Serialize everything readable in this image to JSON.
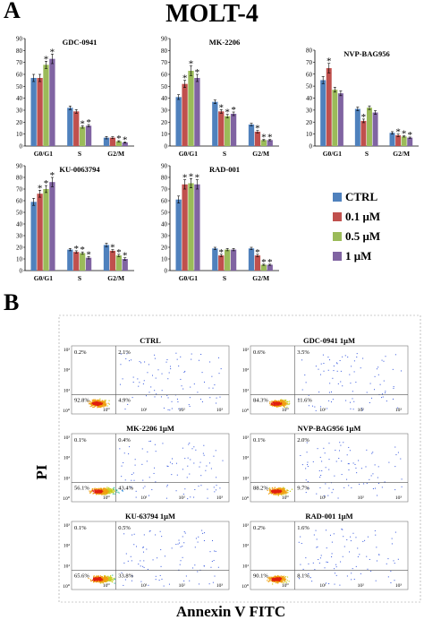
{
  "figure": {
    "panel_a_letter": "A",
    "panel_b_letter": "B",
    "title": "MOLT-4",
    "flow_y_label": "PI",
    "flow_x_label": "Annexin V FITC"
  },
  "legend": {
    "entries": [
      {
        "label": "CTRL",
        "color": "#4F81BD"
      },
      {
        "label": "0.1 μM",
        "color": "#C0504D"
      },
      {
        "label": "0.5 μM",
        "color": "#9BBB59"
      },
      {
        "label": "1 μM",
        "color": "#8064A2"
      }
    ]
  },
  "chart_data": [
    {
      "type": "bar",
      "title": "GDC-0941",
      "categories": [
        "G0/G1",
        "S",
        "G2/M"
      ],
      "ylim": [
        0,
        90
      ],
      "yticks": [
        "0",
        "10",
        "20",
        "30",
        "40",
        "50",
        "60",
        "70",
        "80",
        "90"
      ],
      "series": [
        {
          "name": "CTRL",
          "values": [
            57,
            32,
            7
          ],
          "errors": [
            3,
            1.5,
            1
          ]
        },
        {
          "name": "0.1 μM",
          "values": [
            57,
            29,
            7
          ],
          "errors": [
            3,
            1.5,
            0.8
          ]
        },
        {
          "name": "0.5 μM",
          "values": [
            68,
            16,
            4
          ],
          "errors": [
            3,
            1,
            0.5
          ]
        },
        {
          "name": "1 μM",
          "values": [
            73,
            17,
            3
          ],
          "errors": [
            4,
            1,
            0.5
          ]
        }
      ],
      "stars": [
        [
          false,
          false,
          true,
          true
        ],
        [
          false,
          false,
          true,
          true
        ],
        [
          false,
          false,
          true,
          true
        ]
      ]
    },
    {
      "type": "bar",
      "title": "MK-2206",
      "categories": [
        "G0/G1",
        "S",
        "G2/M"
      ],
      "ylim": [
        0,
        90
      ],
      "yticks": [
        "0",
        "10",
        "20",
        "30",
        "40",
        "50",
        "60",
        "70",
        "80",
        "90"
      ],
      "series": [
        {
          "name": "CTRL",
          "values": [
            41,
            37,
            18
          ],
          "errors": [
            2,
            1.5,
            1
          ]
        },
        {
          "name": "0.1 μM",
          "values": [
            52,
            29,
            12
          ],
          "errors": [
            3,
            1.5,
            1
          ]
        },
        {
          "name": "0.5 μM",
          "values": [
            63,
            25,
            5
          ],
          "errors": [
            4,
            1.5,
            0.5
          ]
        },
        {
          "name": "1 μM",
          "values": [
            57,
            27,
            5
          ],
          "errors": [
            3,
            1.5,
            0.5
          ]
        }
      ],
      "stars": [
        [
          false,
          true,
          true,
          true
        ],
        [
          false,
          true,
          true,
          true
        ],
        [
          false,
          true,
          true,
          true
        ]
      ]
    },
    {
      "type": "bar",
      "title": "NVP-BAG956",
      "categories": [
        "G0/G1",
        "S",
        "G2/M"
      ],
      "ylim": [
        0,
        80
      ],
      "yticks": [
        "0",
        "10",
        "20",
        "30",
        "40",
        "50",
        "60",
        "70",
        "80"
      ],
      "series": [
        {
          "name": "CTRL",
          "values": [
            55,
            31,
            11
          ],
          "errors": [
            3,
            1.5,
            1
          ]
        },
        {
          "name": "0.1 μM",
          "values": [
            65,
            21,
            9
          ],
          "errors": [
            4,
            1.5,
            1
          ]
        },
        {
          "name": "0.5 μM",
          "values": [
            47,
            32,
            8
          ],
          "errors": [
            2,
            1.5,
            0.5
          ]
        },
        {
          "name": "1 μM",
          "values": [
            44,
            28,
            7
          ],
          "errors": [
            2,
            1.5,
            0.5
          ]
        }
      ],
      "stars": [
        [
          false,
          true,
          false,
          false
        ],
        [
          false,
          true,
          false,
          false
        ],
        [
          false,
          true,
          true,
          true
        ]
      ]
    },
    {
      "type": "bar",
      "title": "KU-0063794",
      "categories": [
        "G0/G1",
        "S",
        "G2/M"
      ],
      "ylim": [
        0,
        90
      ],
      "yticks": [
        "0",
        "10",
        "20",
        "30",
        "40",
        "50",
        "60",
        "70",
        "80",
        "90"
      ],
      "series": [
        {
          "name": "CTRL",
          "values": [
            59,
            18,
            22
          ],
          "errors": [
            3,
            1,
            1.5
          ]
        },
        {
          "name": "0.1 μM",
          "values": [
            66,
            16,
            17
          ],
          "errors": [
            3,
            1,
            1
          ]
        },
        {
          "name": "0.5 μM",
          "values": [
            70,
            15,
            13
          ],
          "errors": [
            3,
            1,
            1
          ]
        },
        {
          "name": "1 μM",
          "values": [
            76,
            11,
            10
          ],
          "errors": [
            4,
            1,
            1
          ]
        }
      ],
      "stars": [
        [
          false,
          true,
          true,
          true
        ],
        [
          false,
          true,
          true,
          true
        ],
        [
          false,
          true,
          true,
          true
        ]
      ]
    },
    {
      "type": "bar",
      "title": "RAD-001",
      "categories": [
        "G0/G1",
        "S",
        "G2/M"
      ],
      "ylim": [
        0,
        90
      ],
      "yticks": [
        "0",
        "10",
        "20",
        "30",
        "40",
        "50",
        "60",
        "70",
        "80",
        "90"
      ],
      "series": [
        {
          "name": "CTRL",
          "values": [
            61,
            19,
            19
          ],
          "errors": [
            3,
            1,
            1
          ]
        },
        {
          "name": "0.1 μM",
          "values": [
            74,
            13,
            13
          ],
          "errors": [
            4,
            1,
            1
          ]
        },
        {
          "name": "0.5 μM",
          "values": [
            75,
            18,
            5
          ],
          "errors": [
            4,
            1,
            0.5
          ]
        },
        {
          "name": "1 μM",
          "values": [
            74,
            18,
            5
          ],
          "errors": [
            4,
            1,
            0.5
          ]
        }
      ],
      "stars": [
        [
          false,
          true,
          true,
          true
        ],
        [
          false,
          true,
          false,
          false
        ],
        [
          false,
          true,
          true,
          true
        ]
      ]
    }
  ],
  "flow_panels": [
    {
      "title": "CTRL",
      "q_ul": "0.2%",
      "q_ur": "2.1%",
      "q_ll": "92.8%",
      "q_lr": "4.9%",
      "spread": 0.3
    },
    {
      "title": "GDC-0941 1μM",
      "q_ul": "0.6%",
      "q_ur": "3.5%",
      "q_ll": "84.3%",
      "q_lr": "11.6%",
      "spread": 0.6
    },
    {
      "title": "MK-2206 1μM",
      "q_ul": "0.1%",
      "q_ur": "0.4%",
      "q_ll": "56.1%",
      "q_lr": "43.4%",
      "spread": 1.3
    },
    {
      "title": "NVP-BAG956 1μM",
      "q_ul": "0.1%",
      "q_ur": "2.0%",
      "q_ll": "88.2%",
      "q_lr": "9.7%",
      "spread": 0.5
    },
    {
      "title": "KU-63794 1μM",
      "q_ul": "0.1%",
      "q_ur": "0.5%",
      "q_ll": "65.6%",
      "q_lr": "33.8%",
      "spread": 1.1
    },
    {
      "title": "RAD-001 1μM",
      "q_ul": "0.2%",
      "q_ur": "1.6%",
      "q_ll": "90.1%",
      "q_lr": "8.1%",
      "spread": 0.4
    }
  ],
  "flow_axis": {
    "y_ticks": [
      "10³",
      "10²",
      "10¹",
      "10⁰"
    ],
    "x_ticks": [
      "10⁰",
      "10¹",
      "10²",
      "10³"
    ]
  }
}
